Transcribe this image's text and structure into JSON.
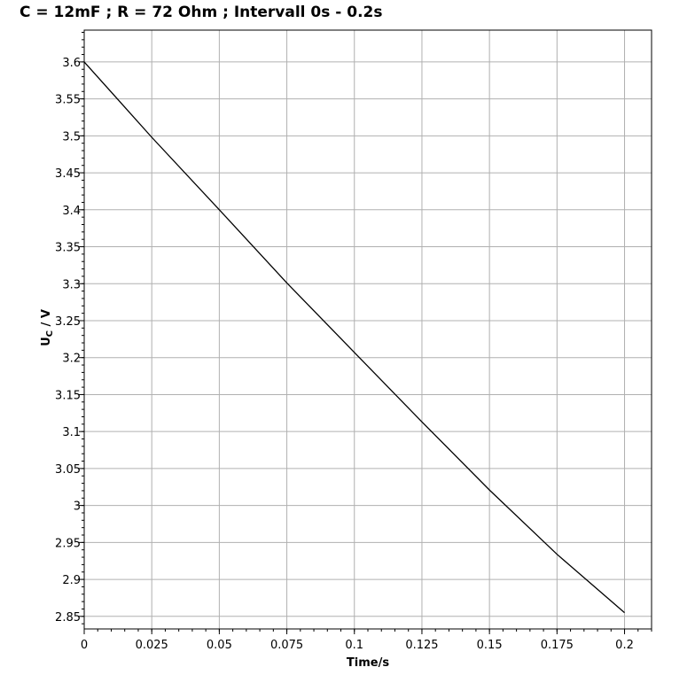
{
  "chart_data": {
    "type": "line",
    "title": "C = 12mF ; R = 72 Ohm ; Intervall 0s - 0.2s",
    "xlabel": "Time/s",
    "ylabel_main": "U",
    "ylabel_sub": "C",
    "ylabel_rest": " / V",
    "xlim": [
      0,
      0.21
    ],
    "ylim": [
      2.833,
      3.643
    ],
    "grid": true,
    "legend": "none",
    "x_ticks": [
      {
        "value": 0,
        "label": "0"
      },
      {
        "value": 0.025,
        "label": "0.025"
      },
      {
        "value": 0.05,
        "label": "0.05"
      },
      {
        "value": 0.075,
        "label": "0.075"
      },
      {
        "value": 0.1,
        "label": "0.1"
      },
      {
        "value": 0.125,
        "label": "0.125"
      },
      {
        "value": 0.15,
        "label": "0.15"
      },
      {
        "value": 0.175,
        "label": "0.175"
      },
      {
        "value": 0.2,
        "label": "0.2"
      }
    ],
    "y_ticks": [
      {
        "value": 2.85,
        "label": "2.85"
      },
      {
        "value": 2.9,
        "label": "2.9"
      },
      {
        "value": 2.95,
        "label": "2.95"
      },
      {
        "value": 3.0,
        "label": "3"
      },
      {
        "value": 3.05,
        "label": "3.05"
      },
      {
        "value": 3.1,
        "label": "3.1"
      },
      {
        "value": 3.15,
        "label": "3.15"
      },
      {
        "value": 3.2,
        "label": "3.2"
      },
      {
        "value": 3.25,
        "label": "3.25"
      },
      {
        "value": 3.3,
        "label": "3.3"
      },
      {
        "value": 3.35,
        "label": "3.35"
      },
      {
        "value": 3.4,
        "label": "3.4"
      },
      {
        "value": 3.45,
        "label": "3.45"
      },
      {
        "value": 3.5,
        "label": "3.5"
      },
      {
        "value": 3.55,
        "label": "3.55"
      },
      {
        "value": 3.6,
        "label": "3.6"
      }
    ],
    "series": [
      {
        "color": "#000000",
        "x": [
          0,
          0.025,
          0.05,
          0.075,
          0.1,
          0.125,
          0.15,
          0.175,
          0.2
        ],
        "y": [
          3.6,
          3.498,
          3.4,
          3.301,
          3.207,
          3.113,
          3.021,
          2.934,
          2.855
        ]
      }
    ]
  }
}
